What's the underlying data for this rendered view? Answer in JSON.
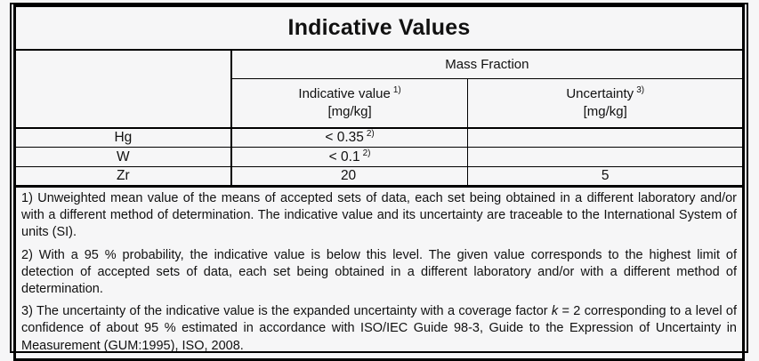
{
  "title": "Indicative Values",
  "table": {
    "group_header": "Mass Fraction",
    "columns": [
      {
        "label": "Indicative value",
        "sup": "1)",
        "unit": "[mg/kg]"
      },
      {
        "label": "Uncertainty",
        "sup": "3)",
        "unit": "[mg/kg]"
      }
    ],
    "rows": [
      {
        "element": "Hg",
        "indicative": "< 0.35",
        "indicative_sup": "2)",
        "uncertainty": ""
      },
      {
        "element": "W",
        "indicative": "< 0.1",
        "indicative_sup": "2)",
        "uncertainty": ""
      },
      {
        "element": "Zr",
        "indicative": "20",
        "indicative_sup": "",
        "uncertainty": "5"
      }
    ]
  },
  "footnotes": [
    {
      "text": "1) Unweighted mean value of the means of accepted sets of data, each set being obtained in a different laboratory and/or with a different method of determination. The indicative value and its uncertainty are traceable to the International System of units (SI)."
    },
    {
      "text": "2) With a 95 % probability, the indicative value is below this level. The given value corresponds to the highest limit of detection of accepted sets of data, each set being obtained in a different laboratory and/or with a different method of determination."
    },
    {
      "pre": "3) The uncertainty of the indicative value is the expanded uncertainty with a coverage factor ",
      "italic": "k",
      "post": " = 2 corresponding to a level of confidence of about 95 % estimated in accordance with ISO/IEC Guide 98-3, Guide to the Expression of Uncertainty in Measurement (GUM:1995), ISO, 2008."
    }
  ],
  "colors": {
    "border": "#000000",
    "background": "#f6f6f7",
    "text": "#111111"
  }
}
